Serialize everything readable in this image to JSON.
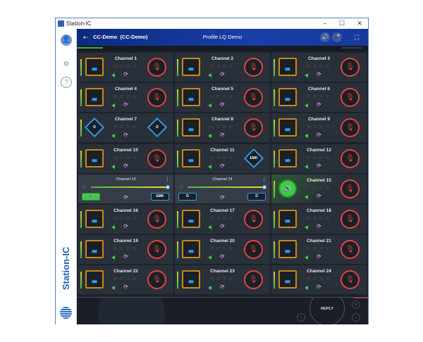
{
  "window": {
    "title": "Station-IC",
    "minimize": "–",
    "maximize": "☐",
    "close": "✕"
  },
  "sidebar": {
    "avatar": "👤",
    "settings": "⚙",
    "help": "?",
    "brand": "Station-IC"
  },
  "header": {
    "back_icon": "⇠",
    "title": "CC-Demo  (CC-Demo)",
    "profile": "Profile LQ Demo",
    "speaker": "🔊",
    "mic": "🎤",
    "fullscreen": "⛶"
  },
  "colors": {
    "accent": "#1a3ea8",
    "talk": "#c98a15",
    "mic": "#e2453a",
    "diamond": "#2f9be0",
    "green": "#43c94a"
  },
  "channels": [
    {
      "name": "Channel 1",
      "left": "talk",
      "right": "mic"
    },
    {
      "name": "Channel 2",
      "left": "talk",
      "right": "mic"
    },
    {
      "name": "Channel 3",
      "left": "talk",
      "right": "mic"
    },
    {
      "name": "Channel 4",
      "left": "talk",
      "right": "mic"
    },
    {
      "name": "Channel 5",
      "left": "talk",
      "right": "mic"
    },
    {
      "name": "Channel 6",
      "left": "talk",
      "right": "mic"
    },
    {
      "name": "Channel 7",
      "left": "diamond",
      "left_label": "D",
      "right": "diamond",
      "right_label": "D"
    },
    {
      "name": "Channel 8",
      "left": "talk",
      "right": "mic"
    },
    {
      "name": "Channel 9",
      "left": "talk",
      "right": "mic"
    },
    {
      "name": "Channel 10",
      "left": "talk",
      "right": "mic"
    },
    {
      "name": "Channel 11",
      "left": "talk",
      "right": "diamond",
      "right_label": "EMK"
    },
    {
      "name": "Channel 12",
      "left": "talk",
      "right": "mic"
    },
    {
      "name": "Channel 13",
      "mode": "volume",
      "volume": 1.0,
      "left": "pill-green",
      "left_label": "🔊",
      "right": "pill",
      "right_label": "EMK"
    },
    {
      "name": "Channel 14",
      "mode": "volume",
      "volume": 1.0,
      "left": "pill",
      "left_label": "D",
      "right": "pill",
      "right_label": "D"
    },
    {
      "name": "Channel 15",
      "left": "speaker",
      "right": "mic",
      "active": true
    },
    {
      "name": "Channel 16",
      "left": "talk",
      "right": "mic"
    },
    {
      "name": "Channel 17",
      "left": "talk",
      "right": "mic"
    },
    {
      "name": "Channel 18",
      "left": "talk",
      "right": "mic"
    },
    {
      "name": "Channel 19",
      "left": "talk",
      "right": "mic"
    },
    {
      "name": "Channel 20",
      "left": "talk",
      "right": "mic"
    },
    {
      "name": "Channel 21",
      "left": "talk",
      "right": "mic"
    },
    {
      "name": "Channel 22",
      "left": "talk",
      "right": "mic"
    },
    {
      "name": "Channel 23",
      "left": "talk",
      "right": "mic"
    },
    {
      "name": "Channel 24",
      "left": "talk",
      "right": "mic"
    }
  ],
  "bottom": {
    "reply": "REPLY",
    "close": "✕",
    "prev": "‹",
    "next": "›"
  }
}
